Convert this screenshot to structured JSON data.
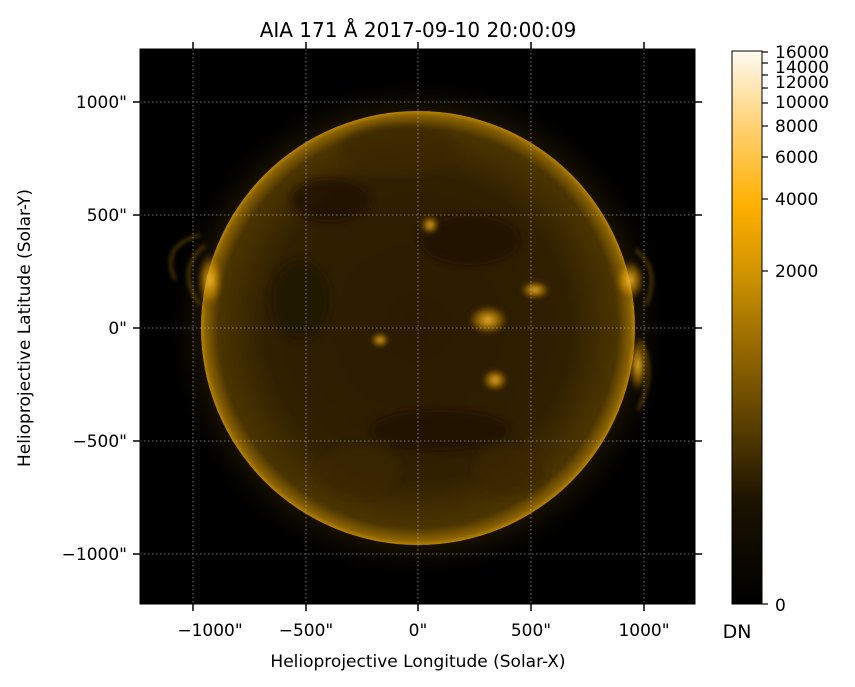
{
  "figure": {
    "title": "AIA 171 Å 2017-09-10 20:00:09",
    "xlabel": "Helioprojective Longitude (Solar-X)",
    "ylabel": "Helioprojective Latitude (Solar-Y)",
    "x_ticks": [
      "−1000\"",
      "−500\"",
      "0\"",
      "500\"",
      "1000\""
    ],
    "y_ticks": [
      "1000\"",
      "500\"",
      "0\"",
      "−500\"",
      "−1000\""
    ],
    "grid": true,
    "x_range_arcsec": [
      -1230,
      1230
    ],
    "y_range_arcsec": [
      -1230,
      1230
    ],
    "solar_radius_arcsec": 958,
    "colormap": "sdoaia171",
    "colors": {
      "background": "#000000",
      "disk_dark": "#1e1000",
      "disk_mid": "#3d2a00",
      "limb": "#c89000",
      "active_region": "#ffb000",
      "cbar_top": "#fffaf0",
      "cbar_mid": "#ffb000"
    }
  },
  "colorbar": {
    "unit_label": "DN",
    "scale": "asinh",
    "range": [
      0,
      16000
    ],
    "ticks": [
      "16000",
      "14000",
      "12000",
      "10000",
      "8000",
      "6000",
      "4000",
      "2000",
      "0"
    ]
  }
}
